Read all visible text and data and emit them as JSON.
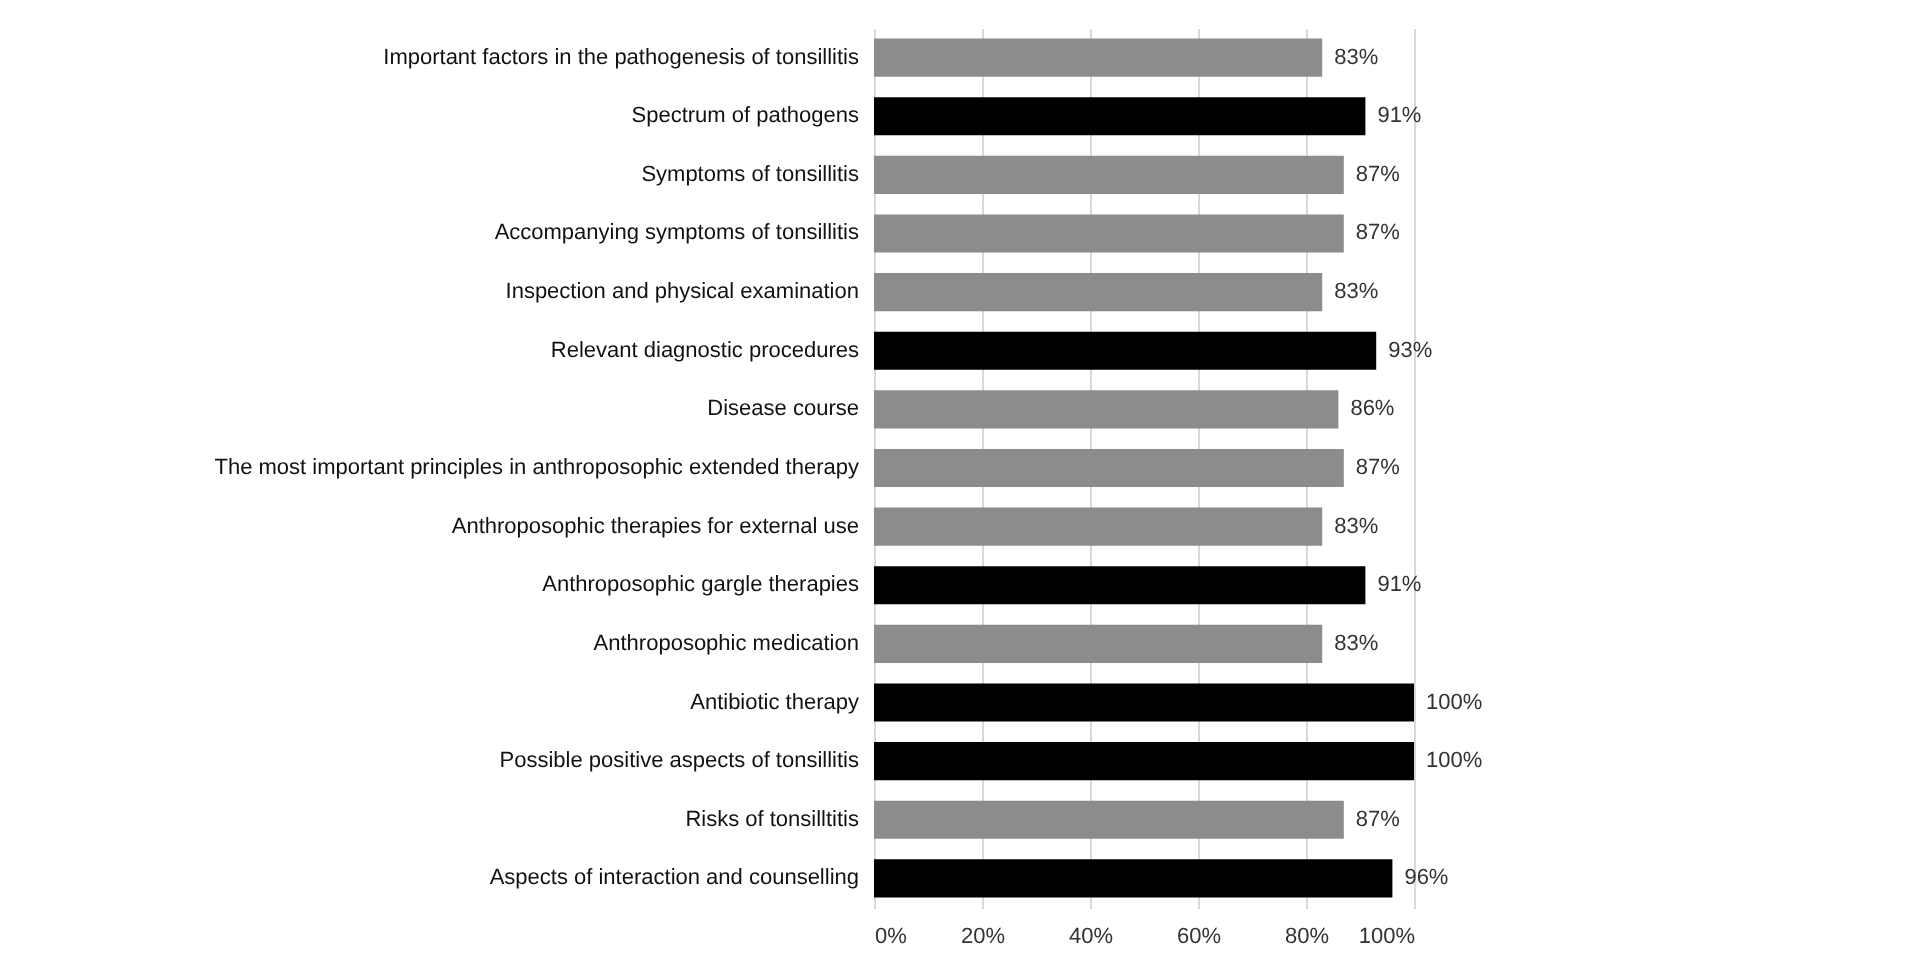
{
  "chart_data": {
    "type": "bar",
    "orientation": "horizontal",
    "categories": [
      "Important factors in the pathogenesis of tonsillitis",
      "Spectrum of pathogens",
      "Symptoms of tonsillitis",
      "Accompanying symptoms of tonsillitis",
      "Inspection and physical examination",
      "Relevant diagnostic procedures",
      "Disease course",
      "The most important principles in anthroposophic extended therapy",
      "Anthroposophic therapies for external use",
      "Anthroposophic gargle therapies",
      "Anthroposophic medication",
      "Antibiotic therapy",
      "Possible positive aspects of tonsillitis",
      "Risks of tonsilltitis",
      "Aspects of interaction and counselling"
    ],
    "values": [
      83,
      91,
      87,
      87,
      83,
      93,
      86,
      87,
      83,
      91,
      83,
      100,
      100,
      87,
      96
    ],
    "value_labels": [
      "83%",
      "91%",
      "87%",
      "87%",
      "83%",
      "93%",
      "86%",
      "87%",
      "83%",
      "91%",
      "83%",
      "100%",
      "100%",
      "87%",
      "96%"
    ],
    "colors": [
      "#8c8c8c",
      "#000000",
      "#8c8c8c",
      "#8c8c8c",
      "#8c8c8c",
      "#000000",
      "#8c8c8c",
      "#8c8c8c",
      "#8c8c8c",
      "#000000",
      "#8c8c8c",
      "#000000",
      "#000000",
      "#8c8c8c",
      "#000000"
    ],
    "xlim": [
      0,
      100
    ],
    "xticks": [
      {
        "value": 0,
        "label": "0%"
      },
      {
        "value": 20,
        "label": "20%"
      },
      {
        "value": 40,
        "label": "40%"
      },
      {
        "value": 60,
        "label": "60%"
      },
      {
        "value": 80,
        "label": "80%"
      },
      {
        "value": 100,
        "label": "100%"
      }
    ],
    "grid": "x"
  }
}
